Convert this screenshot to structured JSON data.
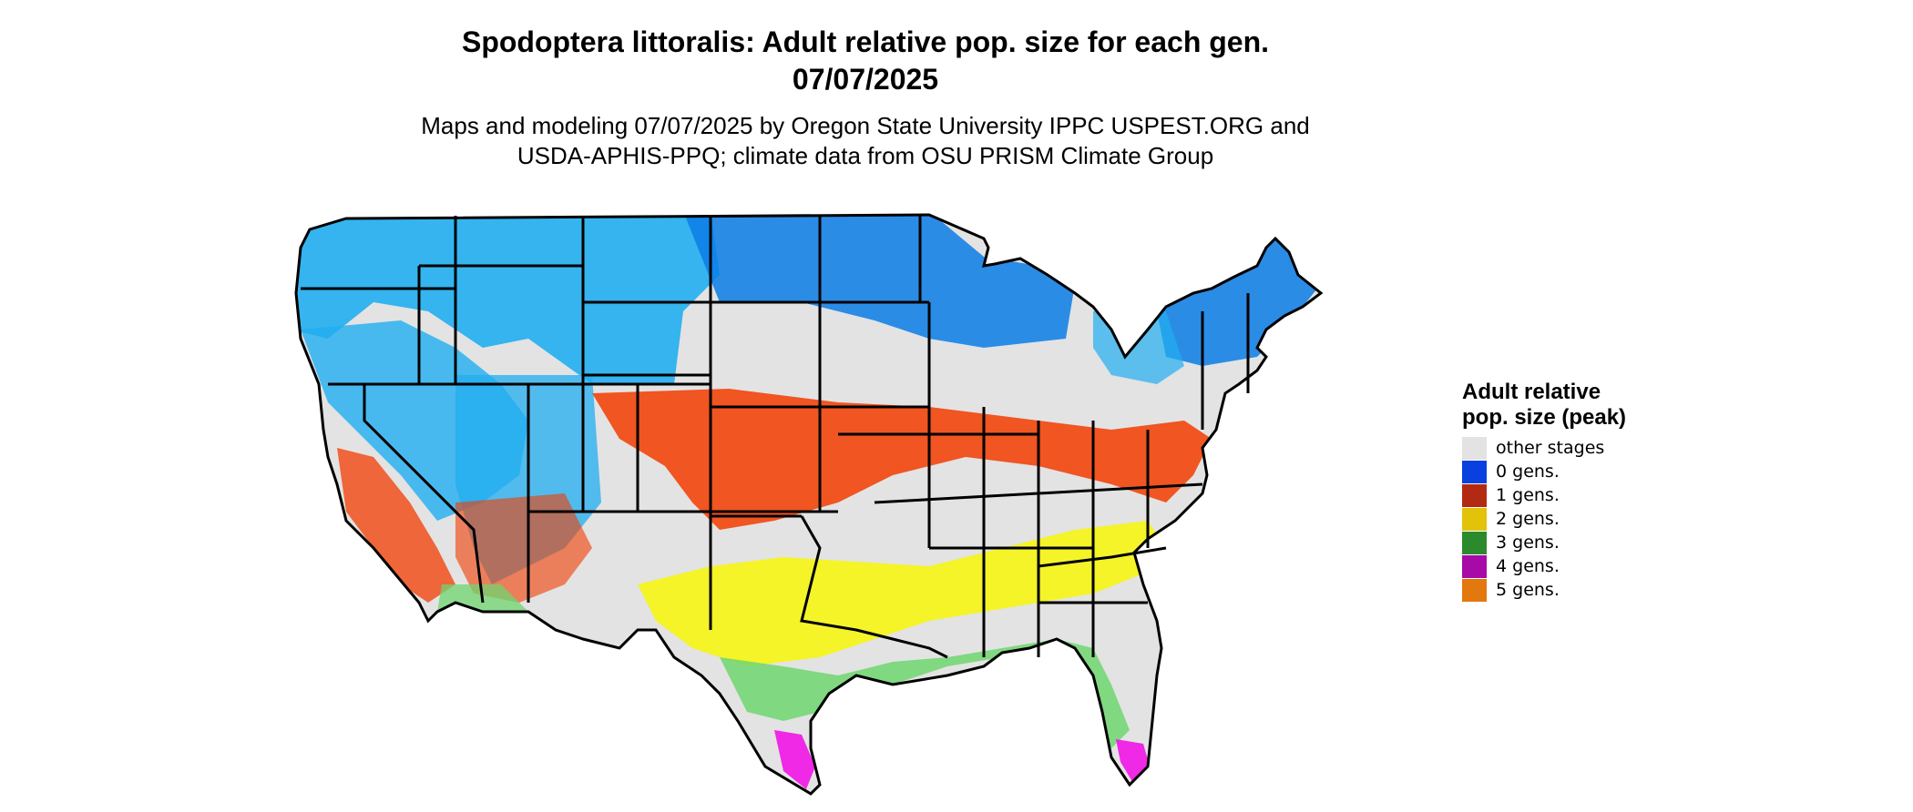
{
  "figure": {
    "title_line1": "Spodoptera littoralis: Adult relative pop. size for each gen.",
    "title_line2": "07/07/2025",
    "subtitle_line1": "Maps and modeling 07/07/2025 by Oregon State University IPPC USPEST.ORG and",
    "subtitle_line2": "USDA-APHIS-PPQ; climate data from OSU PRISM Climate Group"
  },
  "legend": {
    "title": "Adult relative pop. size (peak)",
    "items": [
      {
        "label": "other stages",
        "color": "#e3e3e3"
      },
      {
        "label": "0 gens.",
        "color": "#0a3fe0"
      },
      {
        "label": "1 gens.",
        "color": "#b22a12"
      },
      {
        "label": "2 gens.",
        "color": "#e3c20a"
      },
      {
        "label": "3 gens.",
        "color": "#2b8a2b"
      },
      {
        "label": "4 gens.",
        "color": "#a80aa8"
      },
      {
        "label": "5 gens.",
        "color": "#e3780f"
      }
    ]
  },
  "map_colors": {
    "background_land": "#e3e3e3",
    "zero_gen_dark": "#0a7ce6",
    "zero_gen_light": "#21aef0",
    "one_gen": "#f23c00",
    "two_gen": "#f5f514",
    "three_gen": "#6fd66f",
    "four_gen": "#f014e6",
    "border": "#000000"
  }
}
